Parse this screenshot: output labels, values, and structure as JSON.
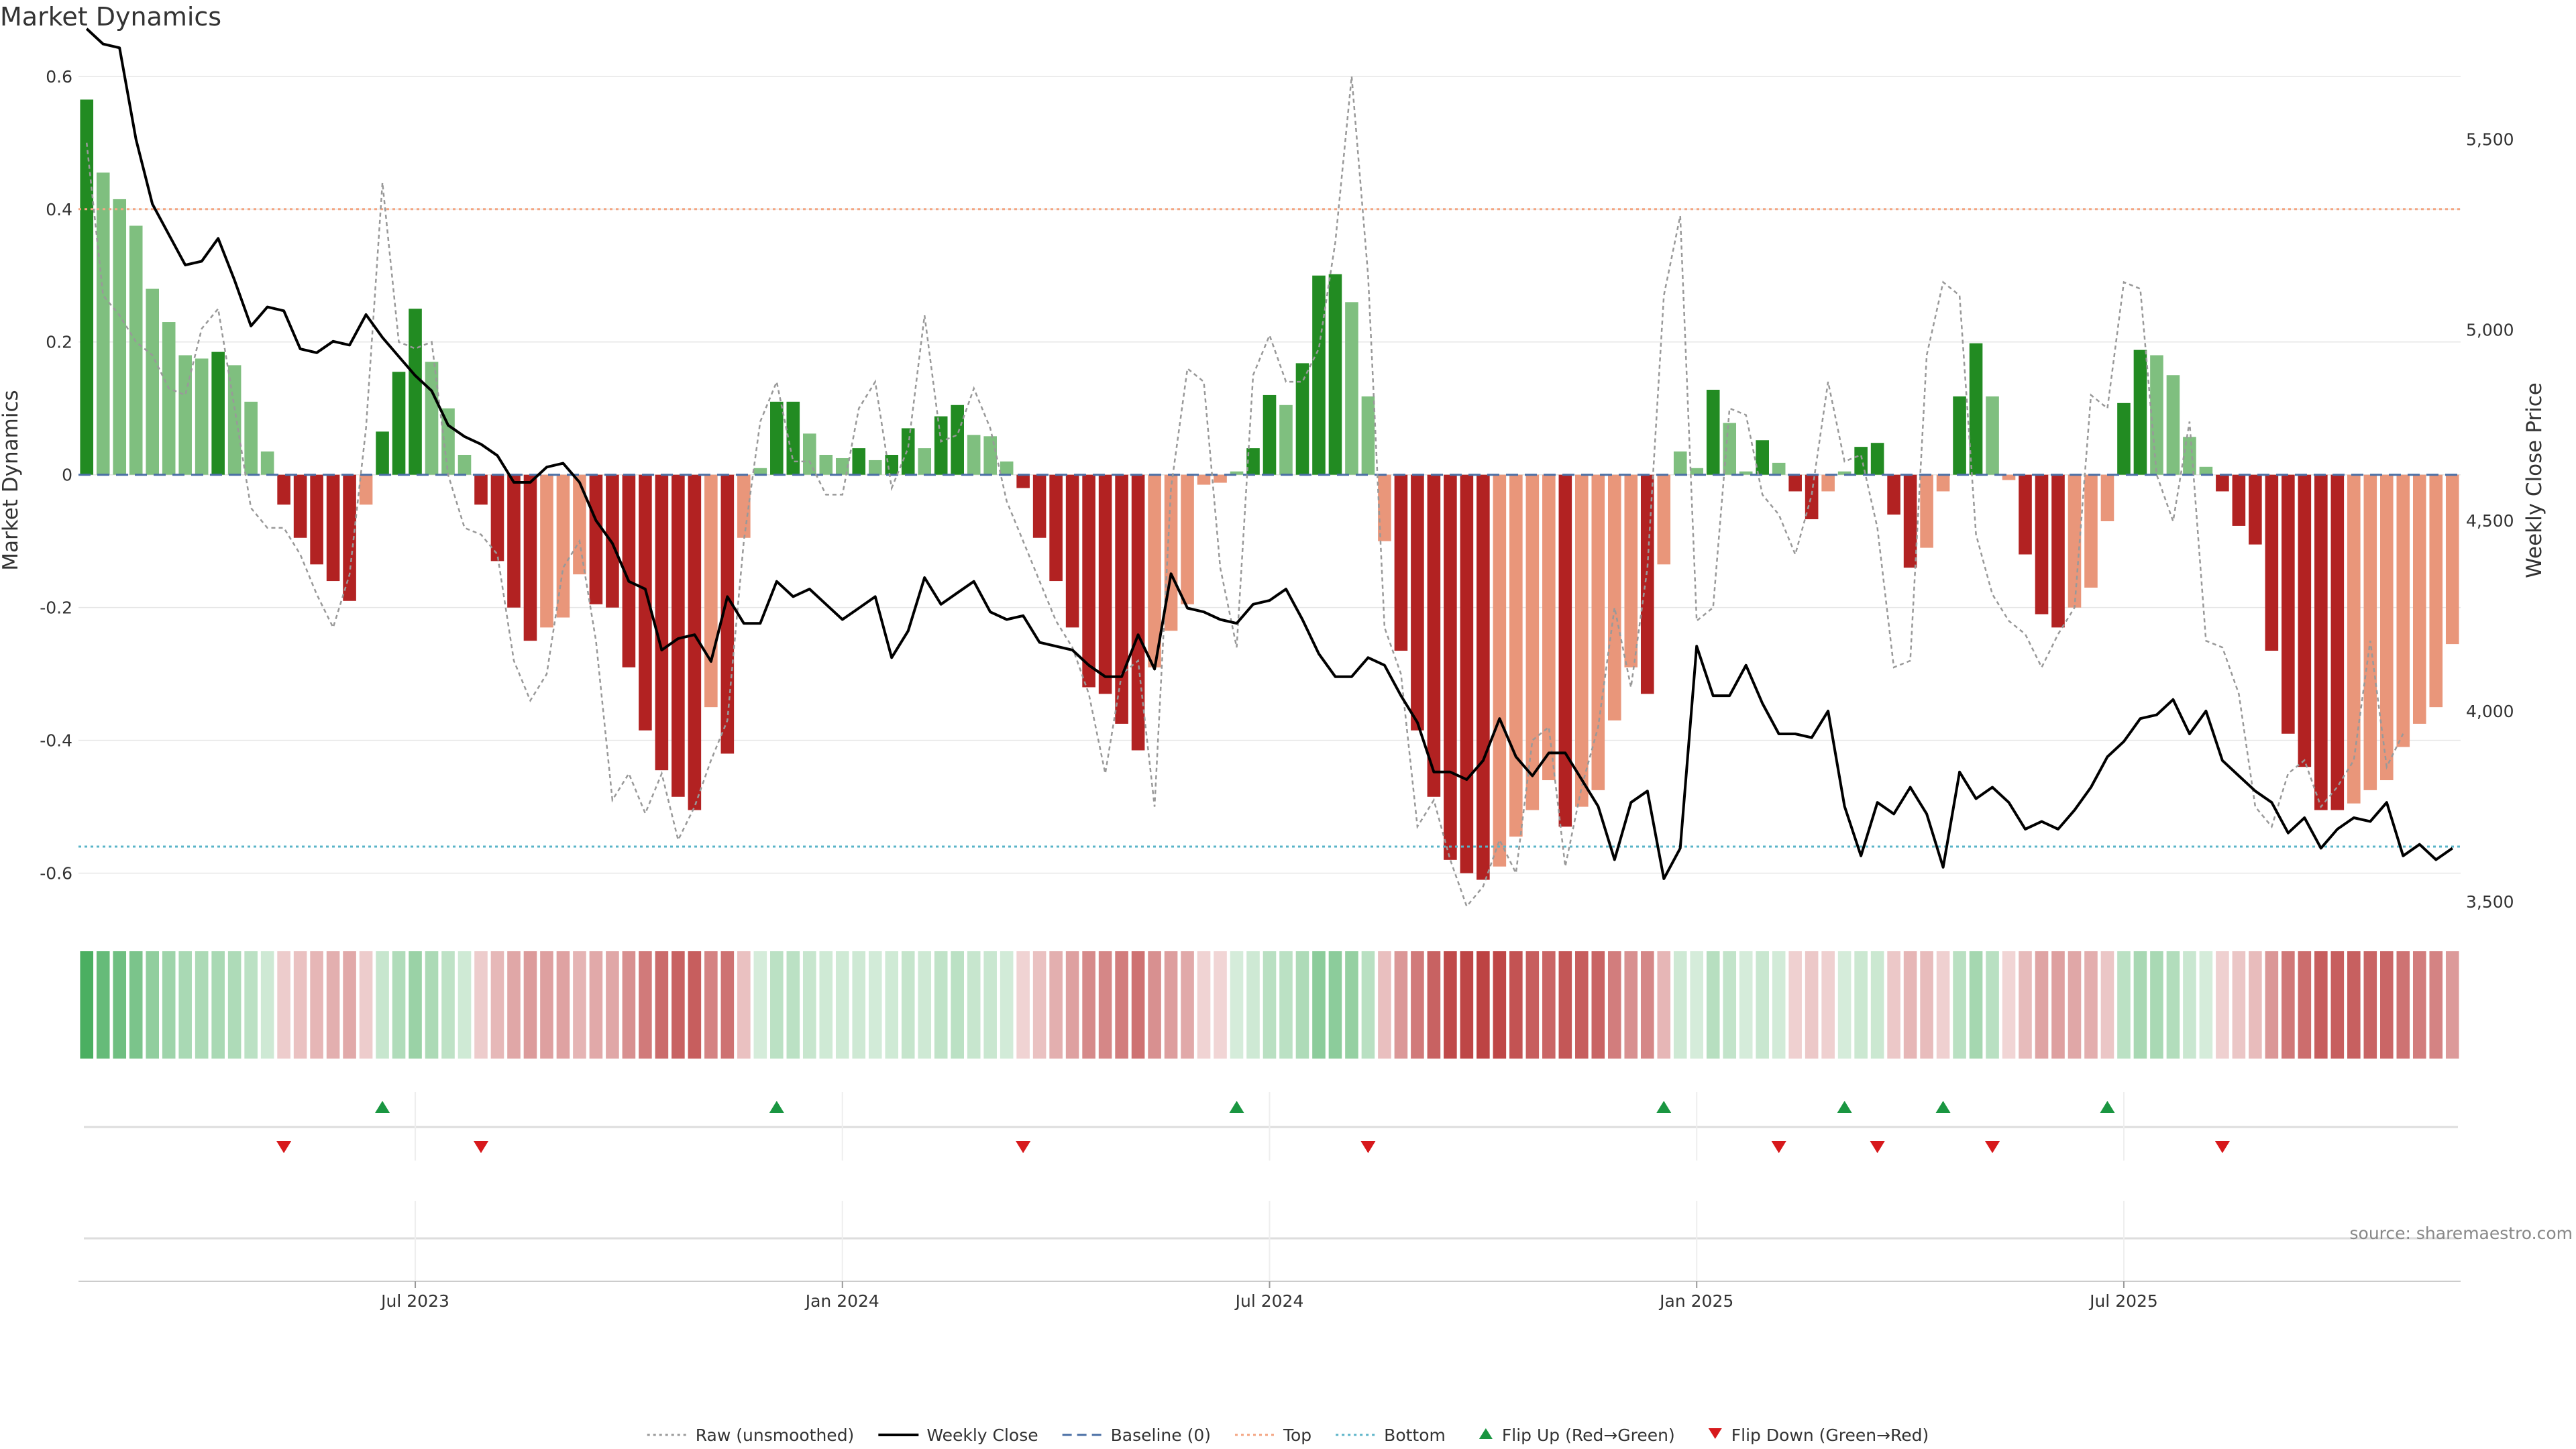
{
  "title": "Market Dynamics",
  "source": "source: sharemaestro.com",
  "chart_data": {
    "type": "bar",
    "title": "Market Dynamics",
    "ylabel_left": "Market Dynamics",
    "ylabel_right": "Weekly Close Price",
    "ylim_left": [
      -0.66,
      0.62
    ],
    "ylim_right": [
      3470,
      5700
    ],
    "yticks_left": [
      {
        "v": 0.6,
        "label": "0.6"
      },
      {
        "v": 0.4,
        "label": "0.4"
      },
      {
        "v": 0.2,
        "label": "0.2"
      },
      {
        "v": 0,
        "label": "0"
      },
      {
        "v": -0.2,
        "label": "-0.2"
      },
      {
        "v": -0.4,
        "label": "-0.4"
      },
      {
        "v": -0.6,
        "label": "-0.6"
      }
    ],
    "yticks_right": [
      {
        "v": 5500,
        "label": "5,500"
      },
      {
        "v": 5000,
        "label": "5,000"
      },
      {
        "v": 4500,
        "label": "4,500"
      },
      {
        "v": 4000,
        "label": "4,000"
      },
      {
        "v": 3500,
        "label": "3,500"
      }
    ],
    "xticks": [
      {
        "i": 20,
        "label": "Jul 2023"
      },
      {
        "i": 46,
        "label": "Jan 2024"
      },
      {
        "i": 72,
        "label": "Jul 2024"
      },
      {
        "i": 98,
        "label": "Jan 2025"
      },
      {
        "i": 124,
        "label": "Jul 2025"
      }
    ],
    "top_level": 0.4,
    "bottom_level": -0.56,
    "baseline": 0,
    "colors": {
      "green_strong": "#228b22",
      "green_light": "#7fbf7f",
      "red_strong": "#b22222",
      "red_light": "#e9967a",
      "raw": "#999999",
      "close": "#000000",
      "baseline": "#4a6fa5",
      "top": "#f4a582",
      "bottom": "#5ab4c8",
      "flip_up": "#1a9641",
      "flip_down": "#d7191c"
    },
    "series": [
      {
        "name": "Market Dynamics (smoothed)",
        "values": [
          0.565,
          0.455,
          0.415,
          0.375,
          0.28,
          0.23,
          0.18,
          0.175,
          0.185,
          0.165,
          0.11,
          0.035,
          -0.045,
          -0.095,
          -0.135,
          -0.16,
          -0.19,
          -0.045,
          0.065,
          0.155,
          0.25,
          0.17,
          0.1,
          0.03,
          -0.045,
          -0.13,
          -0.2,
          -0.25,
          -0.23,
          -0.215,
          -0.15,
          -0.195,
          -0.2,
          -0.29,
          -0.385,
          -0.445,
          -0.485,
          -0.505,
          -0.35,
          -0.42,
          -0.095,
          0.01,
          0.11,
          0.11,
          0.062,
          0.03,
          0.025,
          0.04,
          0.022,
          0.03,
          0.07,
          0.04,
          0.088,
          0.105,
          0.06,
          0.058,
          0.02,
          -0.02,
          -0.095,
          -0.16,
          -0.23,
          -0.32,
          -0.33,
          -0.375,
          -0.415,
          -0.29,
          -0.235,
          -0.195,
          -0.015,
          -0.012,
          0.005,
          0.04,
          0.12,
          0.105,
          0.168,
          0.3,
          0.302,
          0.26,
          0.118,
          -0.1,
          -0.265,
          -0.385,
          -0.485,
          -0.58,
          -0.6,
          -0.61,
          -0.59,
          -0.545,
          -0.505,
          -0.46,
          -0.53,
          -0.5,
          -0.475,
          -0.37,
          -0.29,
          -0.33,
          -0.135,
          0.035,
          0.01,
          0.128,
          0.078,
          0.005,
          0.052,
          0.018,
          -0.025,
          -0.067,
          -0.025,
          0.005,
          0.042,
          0.048,
          -0.06,
          -0.14,
          -0.11,
          -0.025,
          0.118,
          0.198,
          0.118,
          -0.008,
          -0.12,
          -0.21,
          -0.23,
          -0.2,
          -0.17,
          -0.07,
          0.108,
          0.188,
          0.18,
          0.15,
          0.057,
          0.012,
          -0.025,
          -0.077,
          -0.105,
          -0.265,
          -0.39,
          -0.44,
          -0.505,
          -0.505,
          -0.495,
          -0.475,
          -0.46,
          -0.41,
          -0.375,
          -0.35,
          -0.255
        ]
      },
      {
        "name": "Raw (unsmoothed)",
        "values": [
          0.5,
          0.27,
          0.24,
          0.2,
          0.18,
          0.13,
          0.12,
          0.22,
          0.25,
          0.1,
          -0.05,
          -0.08,
          -0.08,
          -0.12,
          -0.18,
          -0.23,
          -0.15,
          0.07,
          0.44,
          0.2,
          0.19,
          0.2,
          0.0,
          -0.08,
          -0.09,
          -0.12,
          -0.28,
          -0.34,
          -0.3,
          -0.14,
          -0.1,
          -0.25,
          -0.49,
          -0.45,
          -0.51,
          -0.45,
          -0.55,
          -0.5,
          -0.43,
          -0.37,
          -0.1,
          0.08,
          0.14,
          0.02,
          0.02,
          -0.03,
          -0.03,
          0.1,
          0.14,
          -0.02,
          0.04,
          0.24,
          0.05,
          0.06,
          0.13,
          0.07,
          -0.04,
          -0.1,
          -0.16,
          -0.22,
          -0.26,
          -0.33,
          -0.45,
          -0.3,
          -0.28,
          -0.5,
          -0.02,
          0.16,
          0.14,
          -0.14,
          -0.26,
          0.15,
          0.21,
          0.14,
          0.14,
          0.19,
          0.35,
          0.6,
          0.3,
          -0.23,
          -0.3,
          -0.53,
          -0.49,
          -0.58,
          -0.65,
          -0.62,
          -0.55,
          -0.6,
          -0.4,
          -0.38,
          -0.59,
          -0.47,
          -0.38,
          -0.2,
          -0.32,
          -0.14,
          0.27,
          0.39,
          -0.22,
          -0.2,
          0.1,
          0.09,
          -0.03,
          -0.06,
          -0.12,
          -0.03,
          0.14,
          0.02,
          0.03,
          -0.08,
          -0.29,
          -0.28,
          0.18,
          0.29,
          0.27,
          -0.09,
          -0.18,
          -0.22,
          -0.24,
          -0.29,
          -0.24,
          -0.2,
          0.12,
          0.1,
          0.29,
          0.28,
          0.0,
          -0.07,
          0.08,
          -0.25,
          -0.26,
          -0.33,
          -0.5,
          -0.53,
          -0.45,
          -0.43,
          -0.5,
          -0.47,
          -0.43,
          -0.25,
          -0.44,
          -0.39
        ]
      },
      {
        "name": "Weekly Close",
        "values": [
          5790,
          5750,
          5740,
          5500,
          5330,
          5250,
          5170,
          5180,
          5240,
          5130,
          5010,
          5060,
          5050,
          4950,
          4940,
          4970,
          4960,
          5040,
          4980,
          4930,
          4880,
          4840,
          4750,
          4720,
          4700,
          4670,
          4600,
          4600,
          4640,
          4650,
          4600,
          4500,
          4440,
          4340,
          4320,
          4160,
          4190,
          4200,
          4130,
          4300,
          4230,
          4230,
          4340,
          4300,
          4320,
          4280,
          4240,
          4270,
          4300,
          4140,
          4210,
          4350,
          4280,
          4310,
          4340,
          4260,
          4240,
          4250,
          4180,
          4170,
          4160,
          4120,
          4090,
          4090,
          4200,
          4110,
          4360,
          4270,
          4260,
          4240,
          4230,
          4280,
          4290,
          4320,
          4240,
          4150,
          4090,
          4090,
          4140,
          4120,
          4040,
          3970,
          3840,
          3840,
          3820,
          3870,
          3980,
          3880,
          3830,
          3890,
          3890,
          3820,
          3750,
          3610,
          3760,
          3790,
          3560,
          3640,
          4170,
          4040,
          4040,
          4120,
          4020,
          3940,
          3940,
          3930,
          4000,
          3750,
          3620,
          3760,
          3730,
          3800,
          3730,
          3590,
          3840,
          3770,
          3800,
          3760,
          3690,
          3710,
          3690,
          3740,
          3800,
          3880,
          3920,
          3980,
          3990,
          4030,
          3940,
          4000,
          3870,
          3830,
          3790,
          3760,
          3680,
          3720,
          3640,
          3690,
          3720,
          3710,
          3760,
          3620,
          3650,
          3610,
          3640
        ]
      }
    ],
    "flip_up_indices": [
      18,
      42,
      70,
      96,
      107,
      113,
      123
    ],
    "flip_down_indices": [
      12,
      24,
      57,
      78,
      103,
      109,
      116,
      130
    ],
    "legend": [
      {
        "label": "Raw (unsmoothed)",
        "kind": "dotted",
        "color": "#999999"
      },
      {
        "label": "Weekly Close",
        "kind": "solid",
        "color": "#000000"
      },
      {
        "label": "Baseline (0)",
        "kind": "dashed",
        "color": "#4a6fa5"
      },
      {
        "label": "Top",
        "kind": "dotted",
        "color": "#f4a582"
      },
      {
        "label": "Bottom",
        "kind": "dotted",
        "color": "#5ab4c8"
      },
      {
        "label": "Flip Up (Red→Green)",
        "kind": "tri-up",
        "color": "#1a9641"
      },
      {
        "label": "Flip Down (Green→Red)",
        "kind": "tri-down",
        "color": "#d7191c"
      }
    ]
  }
}
